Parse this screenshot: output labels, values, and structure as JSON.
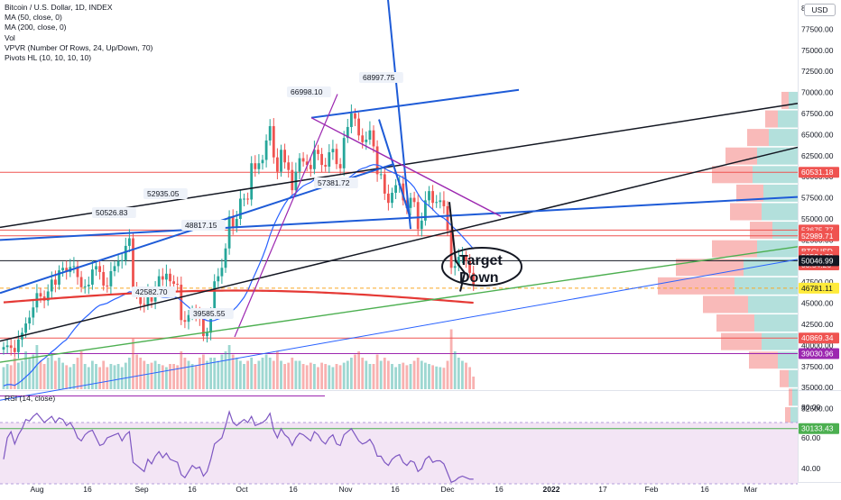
{
  "legend": {
    "title": "Bitcoin / U.S. Dollar, 1D, INDEX",
    "lines": [
      "MA (50, close, 0)",
      "MA (200, close, 0)",
      "Vol",
      "VPVR (Number Of Rows, 24, Up/Down, 70)",
      "Pivots HL (10, 10, 10, 10)"
    ]
  },
  "currency_badge": "USD",
  "rsi_label": "RSI (14, close)",
  "annotation_text": [
    "Target",
    "Down"
  ],
  "colors": {
    "up": "#26a69a",
    "down": "#ef5350",
    "ma50": "#2962ff",
    "ma200": "#e53935",
    "trend_blue": "#1e5bd7",
    "trend_purple": "#9c27b0",
    "trend_green": "#4caf50",
    "rsi_line": "#7e57c2",
    "rsi_band": "#f3e5f5"
  },
  "chart_data": [
    {
      "type": "candlestick",
      "symbol": "BTCUSD",
      "y_ticks": [
        30000,
        32500,
        35000,
        37500,
        40000,
        42500,
        45000,
        47500,
        50000,
        52500,
        55000,
        57500,
        60000,
        62500,
        65000,
        67500,
        70000,
        72500,
        75000,
        77500,
        80000
      ],
      "y_tick_labels": [
        "30000.00",
        "32500.00",
        "35000.00",
        "37500.00",
        "40000.00",
        "42500.00",
        "45000.00",
        "47500.00",
        "50000.00",
        "52500.00",
        "55000.00",
        "57500.00",
        "60000.00",
        "62500.00",
        "65000.00",
        "67500.00",
        "70000.00",
        "72500.00",
        "75000.00",
        "77500.00",
        "80000.00"
      ],
      "ylim": [
        28500,
        81000
      ],
      "x_tick_labels": [
        "Aug",
        "16",
        "Sep",
        "16",
        "Oct",
        "16",
        "Nov",
        "16",
        "Dec",
        "16",
        "2022",
        "17",
        "Feb",
        "16",
        "Mar"
      ],
      "price_labels": [
        {
          "text": "60531.18",
          "value": 60531.18,
          "color": "#ef5350",
          "fill": true
        },
        {
          "text": "53675.77",
          "value": 53675.77,
          "color": "#ef5350",
          "fill": true
        },
        {
          "text": "52989.71",
          "value": 52989.71,
          "color": "#ef5350",
          "fill": true
        },
        {
          "text": "BTCUSD",
          "value": 51150,
          "color": "#ef5350",
          "fill": true
        },
        {
          "text": "50524.70",
          "value": 50524.7,
          "color": "#ef5350",
          "fill": true
        },
        {
          "text": "03:54:26",
          "value": 49550,
          "color": "#ef5350",
          "fill": true
        },
        {
          "text": "50046.99",
          "value": 50046.99,
          "color": "#131722",
          "fill": true
        },
        {
          "text": "46781.11",
          "value": 46781.11,
          "color": "#ffeb3b",
          "fill": true,
          "textColor": "#131722"
        },
        {
          "text": "40869.34",
          "value": 40869.34,
          "color": "#ef5350",
          "fill": true
        },
        {
          "text": "39030.96",
          "value": 39030.96,
          "color": "#9c27b0",
          "fill": true
        },
        {
          "text": "30133.43",
          "value": 30133.43,
          "color": "#4caf50",
          "fill": true
        }
      ],
      "pivot_labels": [
        {
          "text": "66998.10",
          "value": 66998.1
        },
        {
          "text": "68997.75",
          "value": 68997.75
        },
        {
          "text": "57381.72",
          "value": 57381.72
        },
        {
          "text": "52935.05",
          "value": 52935.05
        },
        {
          "text": "50526.83",
          "value": 50526.83
        },
        {
          "text": "48817.15",
          "value": 48817.15
        },
        {
          "text": "42582.70",
          "value": 42582.7
        },
        {
          "text": "39585.55",
          "value": 39585.55
        }
      ],
      "horizontal_lines": [
        60531.18,
        53675.77,
        52989.71,
        50046.99,
        40869.34,
        39030.96,
        30133.43
      ],
      "dashed_line": 46781.11,
      "close_series": [
        39800,
        40000,
        39700,
        39200,
        40700,
        41500,
        42600,
        43300,
        44500,
        46200,
        45800,
        45300,
        46400,
        47800,
        47200,
        48900,
        49200,
        48700,
        49300,
        49400,
        48100,
        46900,
        47000,
        47200,
        49000,
        49400,
        48700,
        47100,
        47000,
        48800,
        49400,
        50000,
        50100,
        51800,
        52700,
        46800,
        46100,
        44900,
        44800,
        46200,
        45200,
        46900,
        48200,
        47800,
        48500,
        47600,
        47300,
        47200,
        43000,
        42800,
        43600,
        44000,
        43600,
        43200,
        41100,
        41500,
        43800,
        47600,
        48200,
        49200,
        51500,
        55300,
        54000,
        55000,
        57400,
        57400,
        57300,
        61600,
        60900,
        61600,
        62000,
        64300,
        66000,
        62300,
        60600,
        63200,
        61700,
        60800,
        58400,
        60600,
        62200,
        61800,
        61400,
        60900,
        63200,
        62700,
        61400,
        61200,
        62900,
        63300,
        61500,
        61000,
        64600,
        65900,
        67500,
        66900,
        64900,
        64100,
        64400,
        65500,
        63600,
        60300,
        60300,
        58000,
        56900,
        58100,
        59000,
        59200,
        57200,
        56300,
        57500,
        57000,
        53800,
        54800,
        57200,
        58300,
        56900,
        57000,
        57200,
        56500,
        53600,
        49200,
        49400,
        50500,
        50600,
        50100,
        48600,
        47200
      ],
      "volume_relative": [
        0.35,
        0.4,
        0.38,
        0.5,
        0.42,
        0.45,
        0.6,
        0.5,
        0.55,
        0.7,
        0.45,
        0.4,
        0.5,
        0.55,
        0.45,
        0.5,
        0.42,
        0.38,
        0.35,
        0.4,
        0.5,
        0.6,
        0.4,
        0.35,
        0.45,
        0.4,
        0.35,
        0.45,
        0.35,
        0.4,
        0.38,
        0.4,
        0.35,
        0.42,
        0.5,
        0.8,
        0.55,
        0.5,
        0.45,
        0.4,
        0.42,
        0.45,
        0.4,
        0.38,
        0.35,
        0.4,
        0.4,
        0.38,
        0.6,
        0.5,
        0.45,
        0.4,
        0.38,
        0.5,
        0.55,
        0.45,
        0.5,
        0.5,
        0.45,
        0.55,
        0.6,
        0.7,
        0.55,
        0.5,
        0.45,
        0.4,
        0.45,
        0.5,
        0.4,
        0.45,
        0.5,
        0.55,
        0.5,
        0.45,
        0.6,
        0.45,
        0.4,
        0.42,
        0.5,
        0.45,
        0.45,
        0.4,
        0.38,
        0.42,
        0.4,
        0.35,
        0.42,
        0.4,
        0.38,
        0.35,
        0.4,
        0.38,
        0.42,
        0.45,
        0.5,
        0.55,
        0.6,
        0.5,
        0.45,
        0.4,
        0.4,
        0.55,
        0.45,
        0.5,
        0.45,
        0.4,
        0.35,
        0.4,
        0.42,
        0.38,
        0.4,
        0.45,
        0.5,
        0.45,
        0.42,
        0.4,
        0.38,
        0.36,
        0.35,
        0.34,
        0.45,
        0.95,
        0.6,
        0.5,
        0.45,
        0.42,
        0.35,
        0.2
      ],
      "vpvr_rows": [
        {
          "price": 79000,
          "up": 0,
          "down": 0
        },
        {
          "price": 69000,
          "up": 10,
          "down": 8
        },
        {
          "price": 66800,
          "up": 22,
          "down": 14
        },
        {
          "price": 64600,
          "up": 32,
          "down": 24
        },
        {
          "price": 62400,
          "up": 45,
          "down": 35
        },
        {
          "price": 60200,
          "up": 50,
          "down": 45
        },
        {
          "price": 58000,
          "up": 38,
          "down": 30
        },
        {
          "price": 55800,
          "up": 40,
          "down": 35
        },
        {
          "price": 53600,
          "up": 28,
          "down": 25
        },
        {
          "price": 51400,
          "up": 45,
          "down": 50
        },
        {
          "price": 49200,
          "up": 60,
          "down": 75
        },
        {
          "price": 47000,
          "up": 70,
          "down": 85
        },
        {
          "price": 44800,
          "up": 55,
          "down": 50
        },
        {
          "price": 42600,
          "up": 48,
          "down": 42
        },
        {
          "price": 40400,
          "up": 40,
          "down": 45
        },
        {
          "price": 38200,
          "up": 22,
          "down": 32
        },
        {
          "price": 36000,
          "up": 10,
          "down": 10
        },
        {
          "price": 33800,
          "up": 6,
          "down": 4
        },
        {
          "price": 31600,
          "up": 8,
          "down": 6
        }
      ]
    },
    {
      "type": "line",
      "name": "RSI (14, close)",
      "y_ticks": [
        40,
        60,
        80
      ],
      "y_tick_labels": [
        "40.00",
        "60.00",
        "80.00"
      ],
      "band": [
        30,
        70
      ],
      "ylim": [
        28,
        90
      ],
      "values": [
        46,
        60,
        64,
        56,
        62,
        66,
        72,
        71,
        74,
        76,
        73,
        70,
        72,
        74,
        70,
        73,
        72,
        68,
        70,
        66,
        60,
        58,
        62,
        64,
        65,
        60,
        55,
        56,
        60,
        61,
        62,
        63,
        58,
        62,
        64,
        44,
        42,
        40,
        38,
        46,
        43,
        48,
        51,
        47,
        50,
        46,
        45,
        44,
        36,
        34,
        38,
        42,
        40,
        41,
        35,
        38,
        46,
        56,
        58,
        60,
        68,
        77,
        70,
        68,
        70,
        72,
        70,
        74,
        68,
        69,
        70,
        72,
        76,
        65,
        60,
        66,
        62,
        60,
        55,
        60,
        63,
        62,
        60,
        58,
        64,
        62,
        58,
        56,
        60,
        62,
        56,
        55,
        62,
        64,
        66,
        62,
        58,
        56,
        57,
        59,
        55,
        48,
        48,
        44,
        42,
        46,
        48,
        49,
        44,
        42,
        45,
        44,
        38,
        40,
        46,
        48,
        44,
        45,
        45,
        43,
        37,
        31,
        32,
        34,
        35,
        34,
        33,
        33
      ]
    }
  ]
}
